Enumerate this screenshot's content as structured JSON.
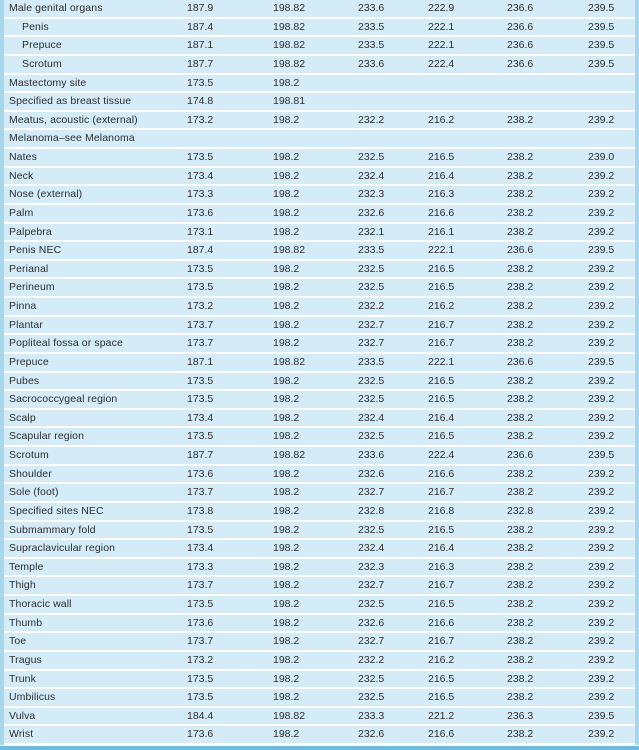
{
  "colors": {
    "row_bg": "#d4ecf8",
    "separator": "#ffffff",
    "edge_strip": "#a6d7eb",
    "bottom_bar": "#6fbbd9",
    "text_color": "#2e2e2e"
  },
  "table": {
    "rows": [
      {
        "label": "Male genital organs",
        "indent": 0,
        "values": [
          "187.9",
          "198.82",
          "233.6",
          "222.9",
          "236.6",
          "239.5"
        ]
      },
      {
        "label": "Penis",
        "indent": 1,
        "values": [
          "187.4",
          "198.82",
          "233.5",
          "222.1",
          "236.6",
          "239.5"
        ]
      },
      {
        "label": "Prepuce",
        "indent": 1,
        "values": [
          "187.1",
          "198.82",
          "233.5",
          "222.1",
          "236.6",
          "239.5"
        ]
      },
      {
        "label": "Scrotum",
        "indent": 1,
        "values": [
          "187.7",
          "198.82",
          "233.6",
          "222.4",
          "236.6",
          "239.5"
        ]
      },
      {
        "label": "Mastectomy site",
        "indent": 0,
        "values": [
          "173.5",
          "198.2",
          "",
          "",
          "",
          ""
        ]
      },
      {
        "label": "Specified as breast tissue",
        "indent": 0,
        "values": [
          "174.8",
          "198.81",
          "",
          "",
          "",
          ""
        ]
      },
      {
        "label": "Meatus, acoustic (external)",
        "indent": 0,
        "values": [
          "173.2",
          "198.2",
          "232.2",
          "216.2",
          "238.2",
          "239.2"
        ]
      },
      {
        "label": "Melanoma–see Melanoma",
        "indent": 0,
        "values": [
          "",
          "",
          "",
          "",
          "",
          ""
        ]
      },
      {
        "label": "Nates",
        "indent": 0,
        "values": [
          "173.5",
          "198.2",
          "232.5",
          "216.5",
          "238.2",
          "239.0"
        ]
      },
      {
        "label": "Neck",
        "indent": 0,
        "values": [
          "173.4",
          "198.2",
          "232.4",
          "216.4",
          "238.2",
          "239.2"
        ]
      },
      {
        "label": "Nose (external)",
        "indent": 0,
        "values": [
          "173.3",
          "198.2",
          "232.3",
          "216.3",
          "238.2",
          "239.2"
        ]
      },
      {
        "label": "Palm",
        "indent": 0,
        "values": [
          "173.6",
          "198.2",
          "232.6",
          "216.6",
          "238.2",
          "239.2"
        ]
      },
      {
        "label": "Palpebra",
        "indent": 0,
        "values": [
          "173.1",
          "198.2",
          "232.1",
          "216.1",
          "238.2",
          "239.2"
        ]
      },
      {
        "label": "Penis NEC",
        "indent": 0,
        "values": [
          "187.4",
          "198.82",
          "233.5",
          "222.1",
          "236.6",
          "239.5"
        ]
      },
      {
        "label": "Perianal",
        "indent": 0,
        "values": [
          "173.5",
          "198.2",
          "232.5",
          "216.5",
          "238.2",
          "239.2"
        ]
      },
      {
        "label": "Perineum",
        "indent": 0,
        "values": [
          "173.5",
          "198.2",
          "232.5",
          "216.5",
          "238.2",
          "239.2"
        ]
      },
      {
        "label": "Pinna",
        "indent": 0,
        "values": [
          "173.2",
          "198.2",
          "232.2",
          "216.2",
          "238.2",
          "239.2"
        ]
      },
      {
        "label": "Plantar",
        "indent": 0,
        "values": [
          "173.7",
          "198.2",
          "232.7",
          "216.7",
          "238.2",
          "239.2"
        ]
      },
      {
        "label": "Popliteal fossa or space",
        "indent": 0,
        "values": [
          "173.7",
          "198.2",
          "232.7",
          "216.7",
          "238.2",
          "239.2"
        ]
      },
      {
        "label": "Prepuce",
        "indent": 0,
        "values": [
          "187.1",
          "198.82",
          "233.5",
          "222.1",
          "236.6",
          "239.5"
        ]
      },
      {
        "label": "Pubes",
        "indent": 0,
        "values": [
          "173.5",
          "198.2",
          "232.5",
          "216.5",
          "238.2",
          "239.2"
        ]
      },
      {
        "label": "Sacrococcygeal region",
        "indent": 0,
        "values": [
          "173.5",
          "198.2",
          "232.5",
          "216.5",
          "238.2",
          "239.2"
        ]
      },
      {
        "label": "Scalp",
        "indent": 0,
        "values": [
          "173.4",
          "198.2",
          "232.4",
          "216.4",
          "238.2",
          "239.2"
        ]
      },
      {
        "label": "Scapular region",
        "indent": 0,
        "values": [
          "173.5",
          "198.2",
          "232.5",
          "216.5",
          "238.2",
          "239.2"
        ]
      },
      {
        "label": "Scrotum",
        "indent": 0,
        "values": [
          "187.7",
          "198.82",
          "233.6",
          "222.4",
          "236.6",
          "239.5"
        ]
      },
      {
        "label": "Shoulder",
        "indent": 0,
        "values": [
          "173.6",
          "198.2",
          "232.6",
          "216.6",
          "238.2",
          "239.2"
        ]
      },
      {
        "label": "Sole (foot)",
        "indent": 0,
        "values": [
          "173.7",
          "198.2",
          "232.7",
          "216.7",
          "238.2",
          "239.2"
        ]
      },
      {
        "label": "Specified sites NEC",
        "indent": 0,
        "values": [
          "173.8",
          "198.2",
          "232.8",
          "216.8",
          "232.8",
          "239.2"
        ]
      },
      {
        "label": "Submammary fold",
        "indent": 0,
        "values": [
          "173.5",
          "198.2",
          "232.5",
          "216.5",
          "238.2",
          "239.2"
        ]
      },
      {
        "label": "Supraclavicular region",
        "indent": 0,
        "values": [
          "173.4",
          "198.2",
          "232.4",
          "216.4",
          "238.2",
          "239.2"
        ]
      },
      {
        "label": "Temple",
        "indent": 0,
        "values": [
          "173.3",
          "198.2",
          "232.3",
          "216.3",
          "238.2",
          "239.2"
        ]
      },
      {
        "label": "Thigh",
        "indent": 0,
        "values": [
          "173.7",
          "198.2",
          "232.7",
          "216.7",
          "238.2",
          "239.2"
        ]
      },
      {
        "label": "Thoracic wall",
        "indent": 0,
        "values": [
          "173.5",
          "198.2",
          "232.5",
          "216.5",
          "238.2",
          "239.2"
        ]
      },
      {
        "label": "Thumb",
        "indent": 0,
        "values": [
          "173.6",
          "198.2",
          "232.6",
          "216.6",
          "238.2",
          "239.2"
        ]
      },
      {
        "label": "Toe",
        "indent": 0,
        "values": [
          "173.7",
          "198.2",
          "232.7",
          "216.7",
          "238.2",
          "239.2"
        ]
      },
      {
        "label": "Tragus",
        "indent": 0,
        "values": [
          "173.2",
          "198.2",
          "232.2",
          "216.2",
          "238.2",
          "239.2"
        ]
      },
      {
        "label": "Trunk",
        "indent": 0,
        "values": [
          "173.5",
          "198.2",
          "232.5",
          "216.5",
          "238.2",
          "239.2"
        ]
      },
      {
        "label": "Umbilicus",
        "indent": 0,
        "values": [
          "173.5",
          "198.2",
          "232.5",
          "216.5",
          "238.2",
          "239.2"
        ]
      },
      {
        "label": "Vulva",
        "indent": 0,
        "values": [
          "184.4",
          "198.82",
          "233.3",
          "221.2",
          "236.3",
          "239.5"
        ]
      },
      {
        "label": "Wrist",
        "indent": 0,
        "values": [
          "173.6",
          "198.2",
          "232.6",
          "216.6",
          "238.2",
          "239.2"
        ]
      }
    ]
  }
}
